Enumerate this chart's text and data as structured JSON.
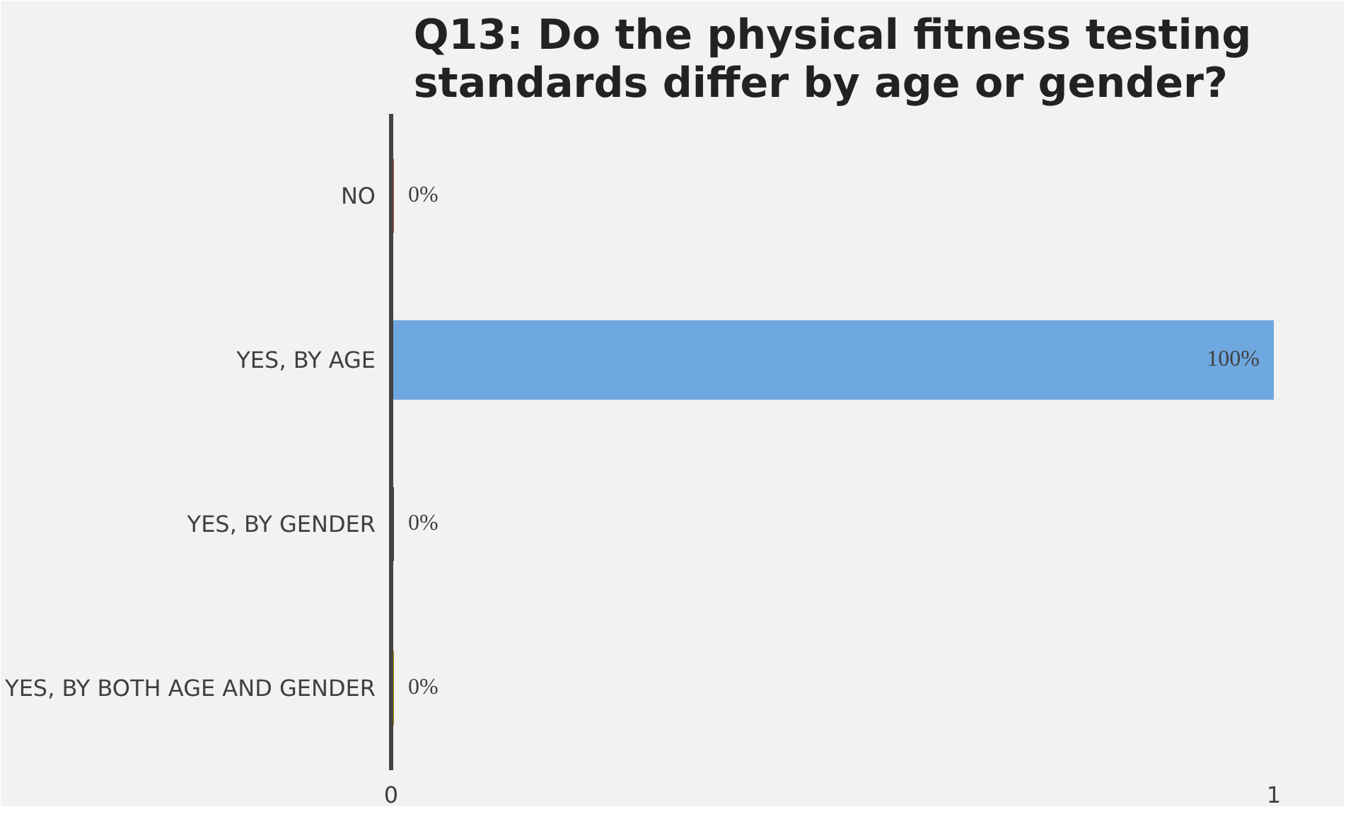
{
  "chart_data": {
    "type": "bar",
    "orientation": "horizontal",
    "title": "Q13: Do the physical fitness testing standards differ by age or gender?",
    "categories": [
      "NO",
      "YES, BY AGE",
      "YES, BY GENDER",
      "YES, BY BOTH AGE AND GENDER"
    ],
    "values": [
      0,
      1,
      0,
      0
    ],
    "colors": [
      "#b5562a",
      "#6fa8e0",
      "#3a3a3a",
      "#c09000"
    ],
    "value_labels": [
      "0%",
      "100%",
      "0%",
      "0%"
    ],
    "xlim": [
      0,
      1
    ],
    "xticks": [
      0,
      1
    ],
    "grid": false
  }
}
